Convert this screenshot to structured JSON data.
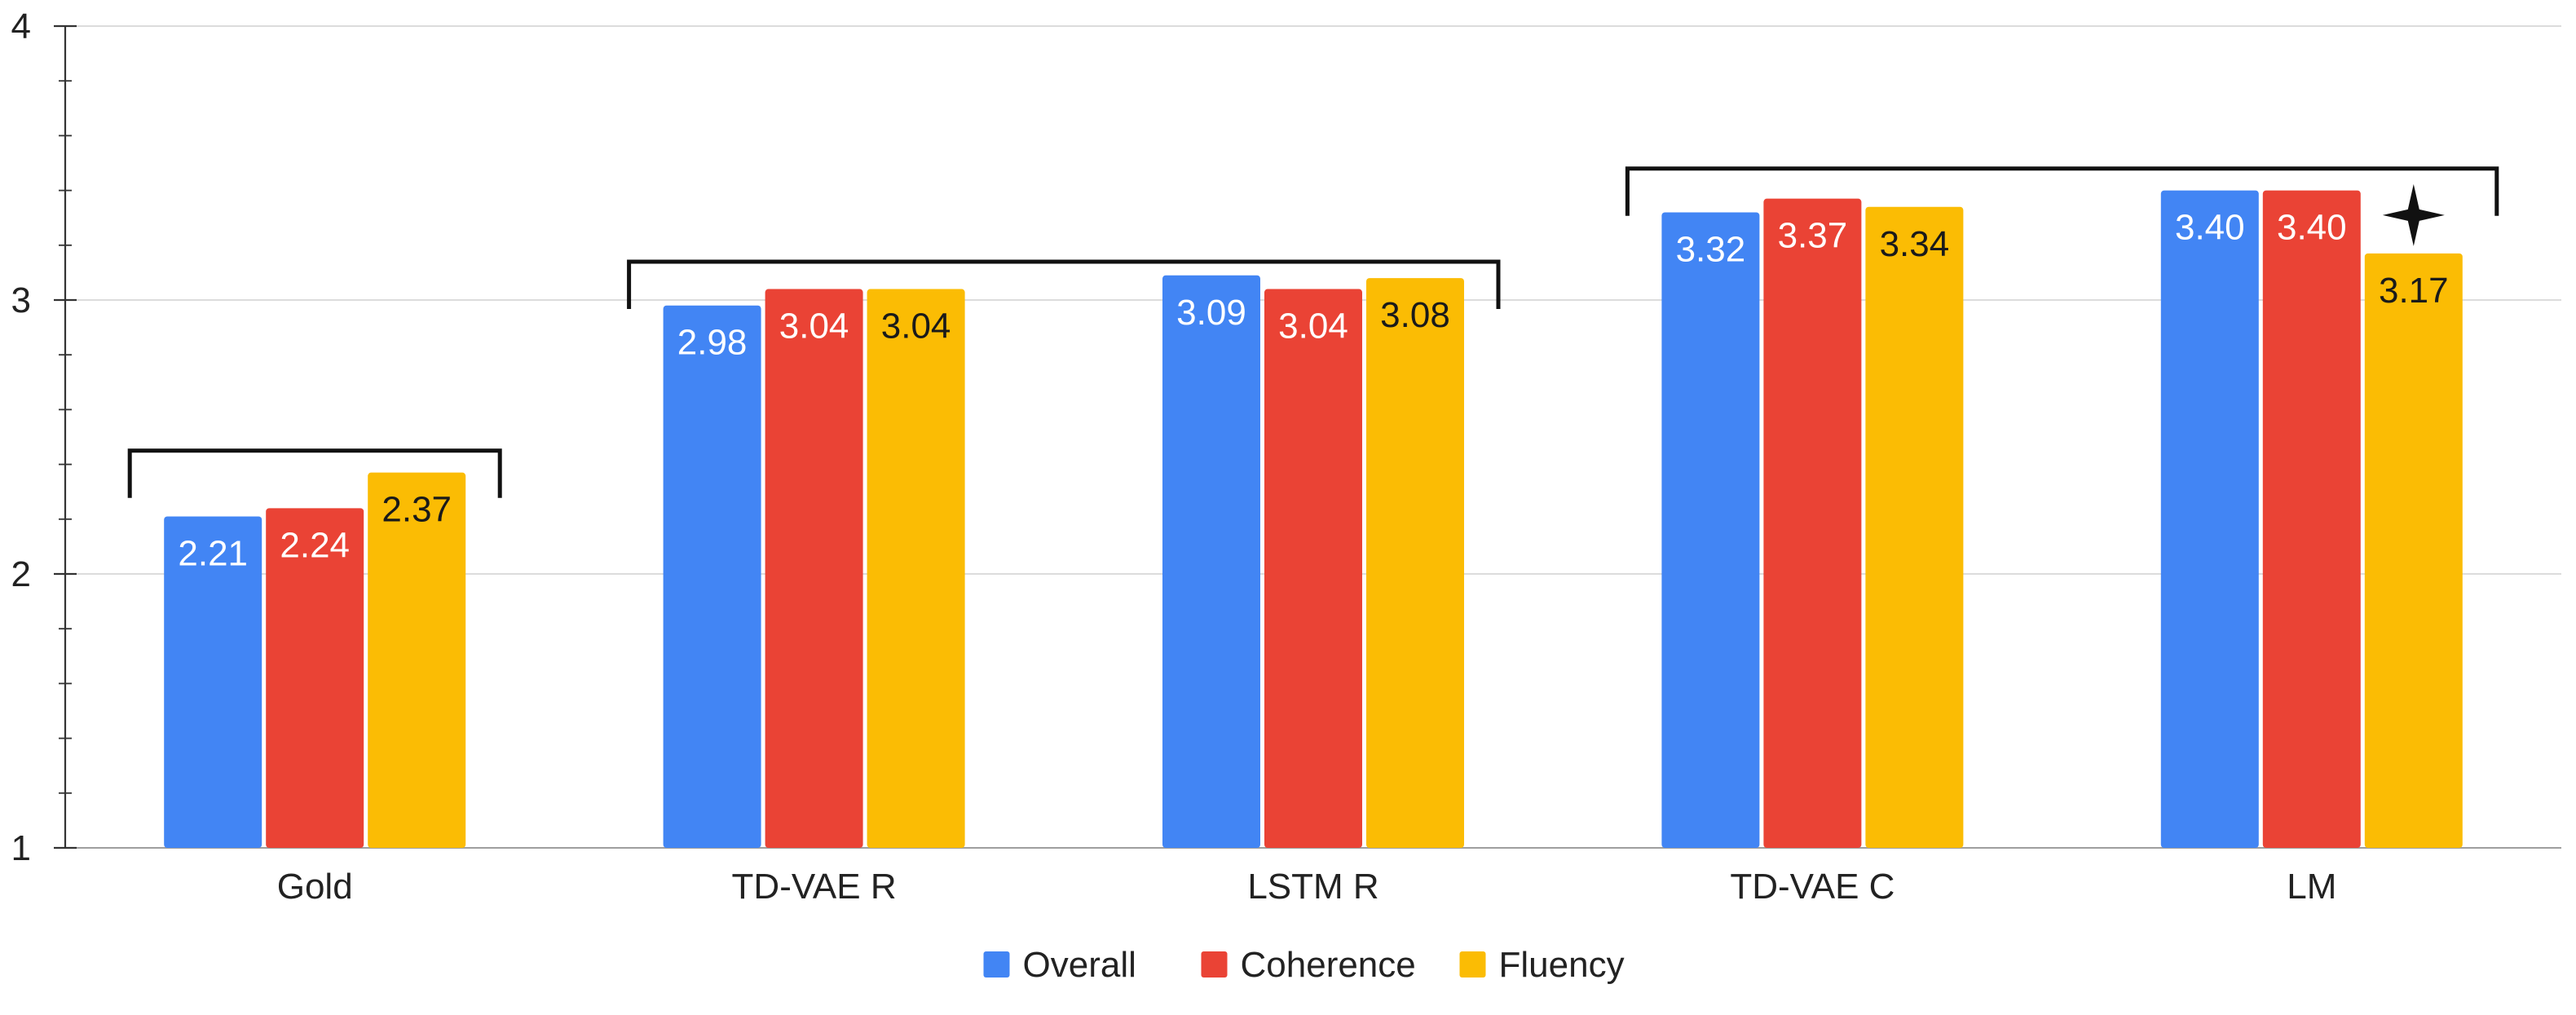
{
  "chart_data": {
    "type": "bar",
    "title": "",
    "xlabel": "",
    "ylabel": "",
    "ylim": [
      1,
      4
    ],
    "y_ticks": [
      "1",
      "2",
      "3",
      "4"
    ],
    "grid": true,
    "legend_position": "bottom-center",
    "categories": [
      "Gold",
      "TD-VAE R",
      "LSTM R",
      "TD-VAE C",
      "LM"
    ],
    "series": [
      {
        "name": "Overall",
        "color": "#4285f4",
        "label_color": "#ffffff",
        "values": [
          2.21,
          2.98,
          3.09,
          3.32,
          3.4
        ],
        "labels": [
          "2.21",
          "2.98",
          "3.09",
          "3.32",
          "3.40"
        ]
      },
      {
        "name": "Coherence",
        "color": "#ea4335",
        "label_color": "#ffffff",
        "values": [
          2.24,
          3.04,
          3.04,
          3.37,
          3.4
        ],
        "labels": [
          "2.24",
          "3.04",
          "3.04",
          "3.37",
          "3.40"
        ]
      },
      {
        "name": "Fluency",
        "color": "#fbbc04",
        "label_color": "#1a1a1a",
        "values": [
          2.37,
          3.04,
          3.08,
          3.34,
          3.17
        ],
        "labels": [
          "2.37",
          "3.04",
          "3.08",
          "3.34",
          "3.17"
        ]
      }
    ],
    "annotations": {
      "brackets": [
        {
          "from_category": 0,
          "to_category": 0,
          "level": 2.45
        },
        {
          "from_category": 1,
          "to_category": 2,
          "level": 3.14
        },
        {
          "from_category": 3,
          "to_category": 4,
          "level": 3.48
        }
      ],
      "star": {
        "category": 4,
        "series": 2,
        "level": 3.31
      }
    }
  }
}
